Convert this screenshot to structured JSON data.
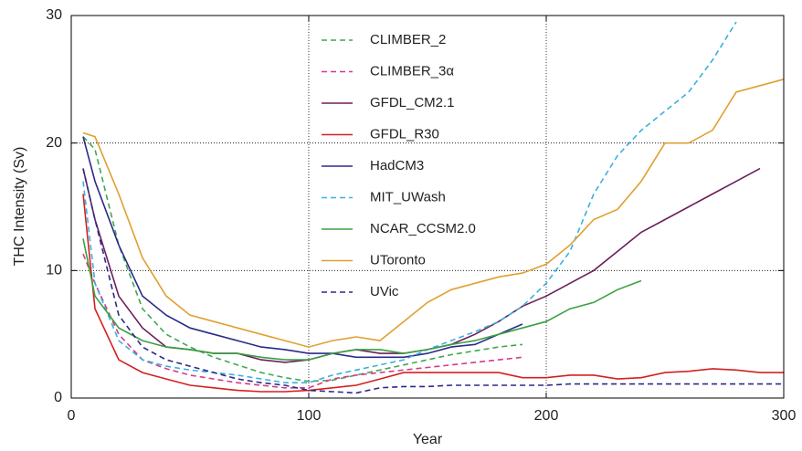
{
  "chart_data": {
    "type": "line",
    "x_label": "Year",
    "y_label": "THC Intensity (Sv)",
    "xlim": [
      0,
      300
    ],
    "ylim": [
      0,
      30
    ],
    "xticks": [
      0,
      100,
      200,
      300
    ],
    "yticks": [
      0,
      10,
      20,
      30
    ],
    "grid": true,
    "x": [
      5,
      10,
      20,
      30,
      40,
      50,
      60,
      70,
      80,
      90,
      100,
      110,
      120,
      130,
      140,
      150,
      160,
      170,
      180,
      190,
      200,
      210,
      220,
      230,
      240,
      250,
      260,
      270,
      280,
      290,
      300
    ],
    "series": [
      {
        "name": "CLIMBER_2",
        "color": "#3fa84f",
        "dashed": true,
        "values": [
          20.5,
          19.5,
          12,
          7,
          5,
          4,
          3.2,
          2.6,
          2,
          1.6,
          1.3,
          1.4,
          1.8,
          2.2,
          2.6,
          3,
          3.4,
          3.7,
          4,
          4.2,
          null,
          null,
          null,
          null,
          null,
          null,
          null,
          null,
          null,
          null,
          null
        ]
      },
      {
        "name": "CLIMBER_3α",
        "color": "#d63a8a",
        "dashed": true,
        "values": [
          11.3,
          9,
          5,
          3,
          2.3,
          1.8,
          1.5,
          1.2,
          1,
          0.8,
          0.8,
          1.5,
          1.8,
          2,
          2.2,
          2.4,
          2.6,
          2.8,
          3,
          3.2,
          null,
          null,
          null,
          null,
          null,
          null,
          null,
          null,
          null,
          null,
          null
        ]
      },
      {
        "name": "GFDL_CM2.1",
        "color": "#6b1f5a",
        "dashed": false,
        "values": [
          18,
          14,
          8,
          5.5,
          4,
          3.8,
          3.5,
          3.5,
          3,
          2.8,
          3,
          3.5,
          3.8,
          3.5,
          3.5,
          3.8,
          4.2,
          5,
          6,
          7.2,
          8,
          9,
          10,
          11.5,
          13,
          14,
          15,
          16,
          17,
          18,
          null
        ]
      },
      {
        "name": "GFDL_R30",
        "color": "#d42020",
        "dashed": false,
        "values": [
          16,
          7,
          3,
          2,
          1.5,
          1,
          0.8,
          0.6,
          0.5,
          0.5,
          0.6,
          0.8,
          1,
          1.5,
          2,
          2,
          2,
          2,
          2,
          1.6,
          1.6,
          1.8,
          1.8,
          1.5,
          1.6,
          2,
          2.1,
          2.3,
          2.2,
          2,
          2
        ]
      },
      {
        "name": "HadCM3",
        "color": "#2a2a8a",
        "dashed": false,
        "values": [
          20.5,
          17,
          12,
          8,
          6.5,
          5.5,
          5,
          4.5,
          4,
          3.8,
          3.5,
          3.5,
          3.2,
          3.2,
          3.2,
          3.5,
          4,
          4.2,
          5,
          5.8,
          null,
          null,
          null,
          null,
          null,
          null,
          null,
          null,
          null,
          null,
          null
        ]
      },
      {
        "name": "MIT_UWash",
        "color": "#3ab0e0",
        "dashed": true,
        "values": [
          17,
          9,
          4.5,
          3,
          2.5,
          2.2,
          2,
          1.8,
          1.5,
          1.2,
          1.2,
          1.8,
          2.2,
          2.6,
          3,
          3.8,
          4.5,
          5.2,
          6,
          7.2,
          9,
          11.5,
          16,
          19,
          21,
          22.5,
          24,
          26.5,
          29.5,
          null,
          null
        ]
      },
      {
        "name": "NCAR_CCSM2.0",
        "color": "#3aa040",
        "dashed": false,
        "values": [
          12.5,
          8,
          5.5,
          4.5,
          4,
          3.8,
          3.5,
          3.5,
          3.2,
          3,
          3,
          3.5,
          3.8,
          3.8,
          3.5,
          3.8,
          4.2,
          4.5,
          5,
          5.5,
          6,
          7,
          7.5,
          8.5,
          9.2,
          null,
          null,
          null,
          null,
          null,
          null
        ]
      },
      {
        "name": "UToronto",
        "color": "#e0a030",
        "dashed": false,
        "values": [
          20.8,
          20.5,
          16,
          11,
          8,
          6.5,
          6,
          5.5,
          5,
          4.5,
          4,
          4.5,
          4.8,
          4.5,
          6,
          7.5,
          8.5,
          9,
          9.5,
          9.8,
          10.5,
          12,
          14,
          14.8,
          17,
          20,
          20,
          21,
          24,
          24.5,
          25
        ]
      },
      {
        "name": "UVic",
        "color": "#2a2a8a",
        "dashed": true,
        "values": [
          18,
          14,
          6.5,
          4,
          3,
          2.5,
          2,
          1.5,
          1.2,
          1,
          0.6,
          0.5,
          0.4,
          0.8,
          0.9,
          0.9,
          1,
          1,
          1,
          1,
          1,
          1.1,
          1.1,
          1.1,
          1.1,
          1.1,
          1.1,
          1.1,
          1.1,
          1.1,
          1.1
        ]
      }
    ]
  }
}
